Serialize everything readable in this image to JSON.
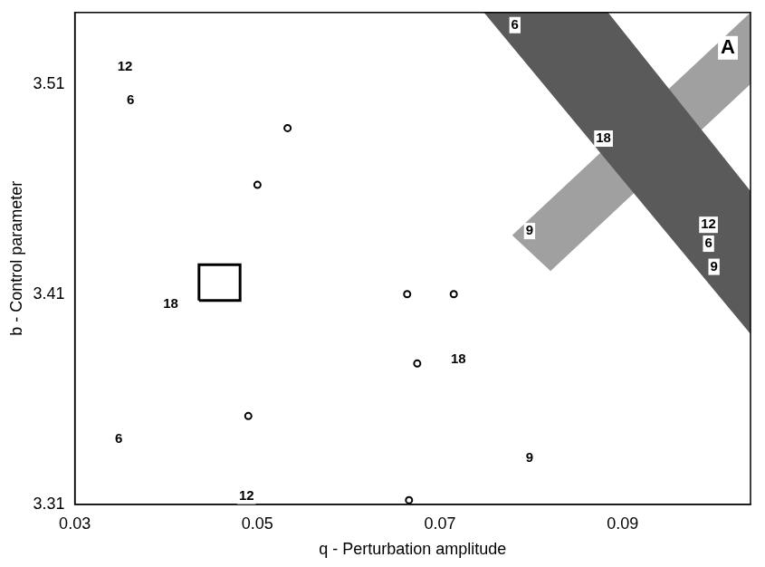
{
  "chart_data": {
    "type": "scatter",
    "x_label": "q - Perturbation amplitude",
    "y_label": "b - Control parameter",
    "panel_label": "A",
    "xlim": [
      0.03,
      0.104
    ],
    "xticks": [
      0.03,
      0.05,
      0.07,
      0.09
    ],
    "ylim": [
      3.31,
      3.544
    ],
    "yticks": [
      3.31,
      3.41,
      3.51
    ],
    "grid": false,
    "regions": [
      {
        "color": "#5a5a5a",
        "x": [
          0.0748,
          0.0884,
          0.104,
          0.104
        ],
        "y": [
          3.544,
          3.544,
          3.459,
          3.391
        ]
      },
      {
        "color": "#a0a0a0",
        "x": [
          0.104,
          0.104,
          0.0821,
          0.0779
        ],
        "y": [
          3.544,
          3.51,
          3.421,
          3.438
        ]
      }
    ],
    "annotations": [
      {
        "text": "12",
        "x": 0.0355,
        "y": 3.518
      },
      {
        "text": "6",
        "x": 0.0361,
        "y": 3.502
      },
      {
        "text": "6",
        "x": 0.0782,
        "y": 3.538
      },
      {
        "text": "18",
        "x": 0.0879,
        "y": 3.484
      },
      {
        "text": "9",
        "x": 0.0798,
        "y": 3.44
      },
      {
        "text": "12",
        "x": 0.0994,
        "y": 3.443
      },
      {
        "text": "6",
        "x": 0.0994,
        "y": 3.434
      },
      {
        "text": "9",
        "x": 0.1,
        "y": 3.423
      },
      {
        "text": "18",
        "x": 0.0405,
        "y": 3.405
      },
      {
        "text": "18",
        "x": 0.072,
        "y": 3.379
      },
      {
        "text": "6",
        "x": 0.0348,
        "y": 3.341
      },
      {
        "text": "12",
        "x": 0.0488,
        "y": 3.314
      },
      {
        "text": "9",
        "x": 0.0798,
        "y": 3.332
      }
    ],
    "markers": {
      "marker": "circle",
      "color": "#000000",
      "x": [
        0.0533,
        0.05,
        0.0664,
        0.0715,
        0.0675,
        0.049,
        0.0666
      ],
      "y": [
        3.489,
        3.462,
        3.41,
        3.41,
        3.377,
        3.352,
        3.312
      ]
    },
    "box": {
      "color": "#000000",
      "x": [
        0.0436,
        0.0481
      ],
      "y": [
        3.407,
        3.424
      ]
    }
  }
}
